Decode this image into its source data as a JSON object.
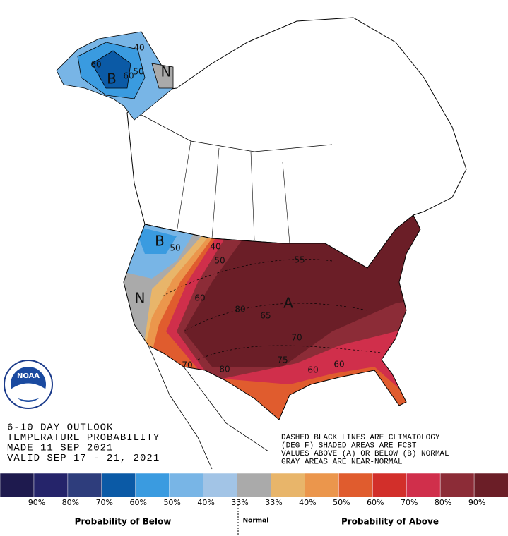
{
  "map_labels": [
    "B",
    "60",
    "60",
    "50",
    "40",
    "N",
    "B",
    "50",
    "40",
    "50",
    "60",
    "N",
    "80",
    "65",
    "A",
    "55",
    "70",
    "75",
    "70",
    "80",
    "60",
    "60"
  ],
  "logo": "NOAA",
  "outlook": [
    "6-10 DAY OUTLOOK",
    "TEMPERATURE PROBABILITY",
    "MADE  11 SEP 2021",
    "VALID  SEP 17 - 21, 2021"
  ],
  "notes": [
    "DASHED BLACK LINES ARE CLIMATOLOGY",
    "(DEG F) SHADED AREAS ARE FCST",
    "VALUES ABOVE (A) OR BELOW (B) NORMAL",
    "GRAY AREAS ARE NEAR-NORMAL"
  ],
  "legend": {
    "colors": [
      "#1e1a4e",
      "#25246a",
      "#2e3d7c",
      "#0b5aa6",
      "#3a9be0",
      "#78b5e6",
      "#a2c4e6",
      "#aaaaaa",
      "#e8b56a",
      "#eb964c",
      "#e05c2e",
      "#d22f2a",
      "#d02f4b",
      "#8c2c37",
      "#6b1e27"
    ],
    "labels": [
      "90%",
      "80%",
      "70%",
      "60%",
      "50%",
      "40%",
      "33%",
      "33%",
      "40%",
      "50%",
      "60%",
      "70%",
      "80%",
      "90%"
    ],
    "below": "Probability of Below",
    "normal": "Normal",
    "above": "Probability of Above"
  }
}
